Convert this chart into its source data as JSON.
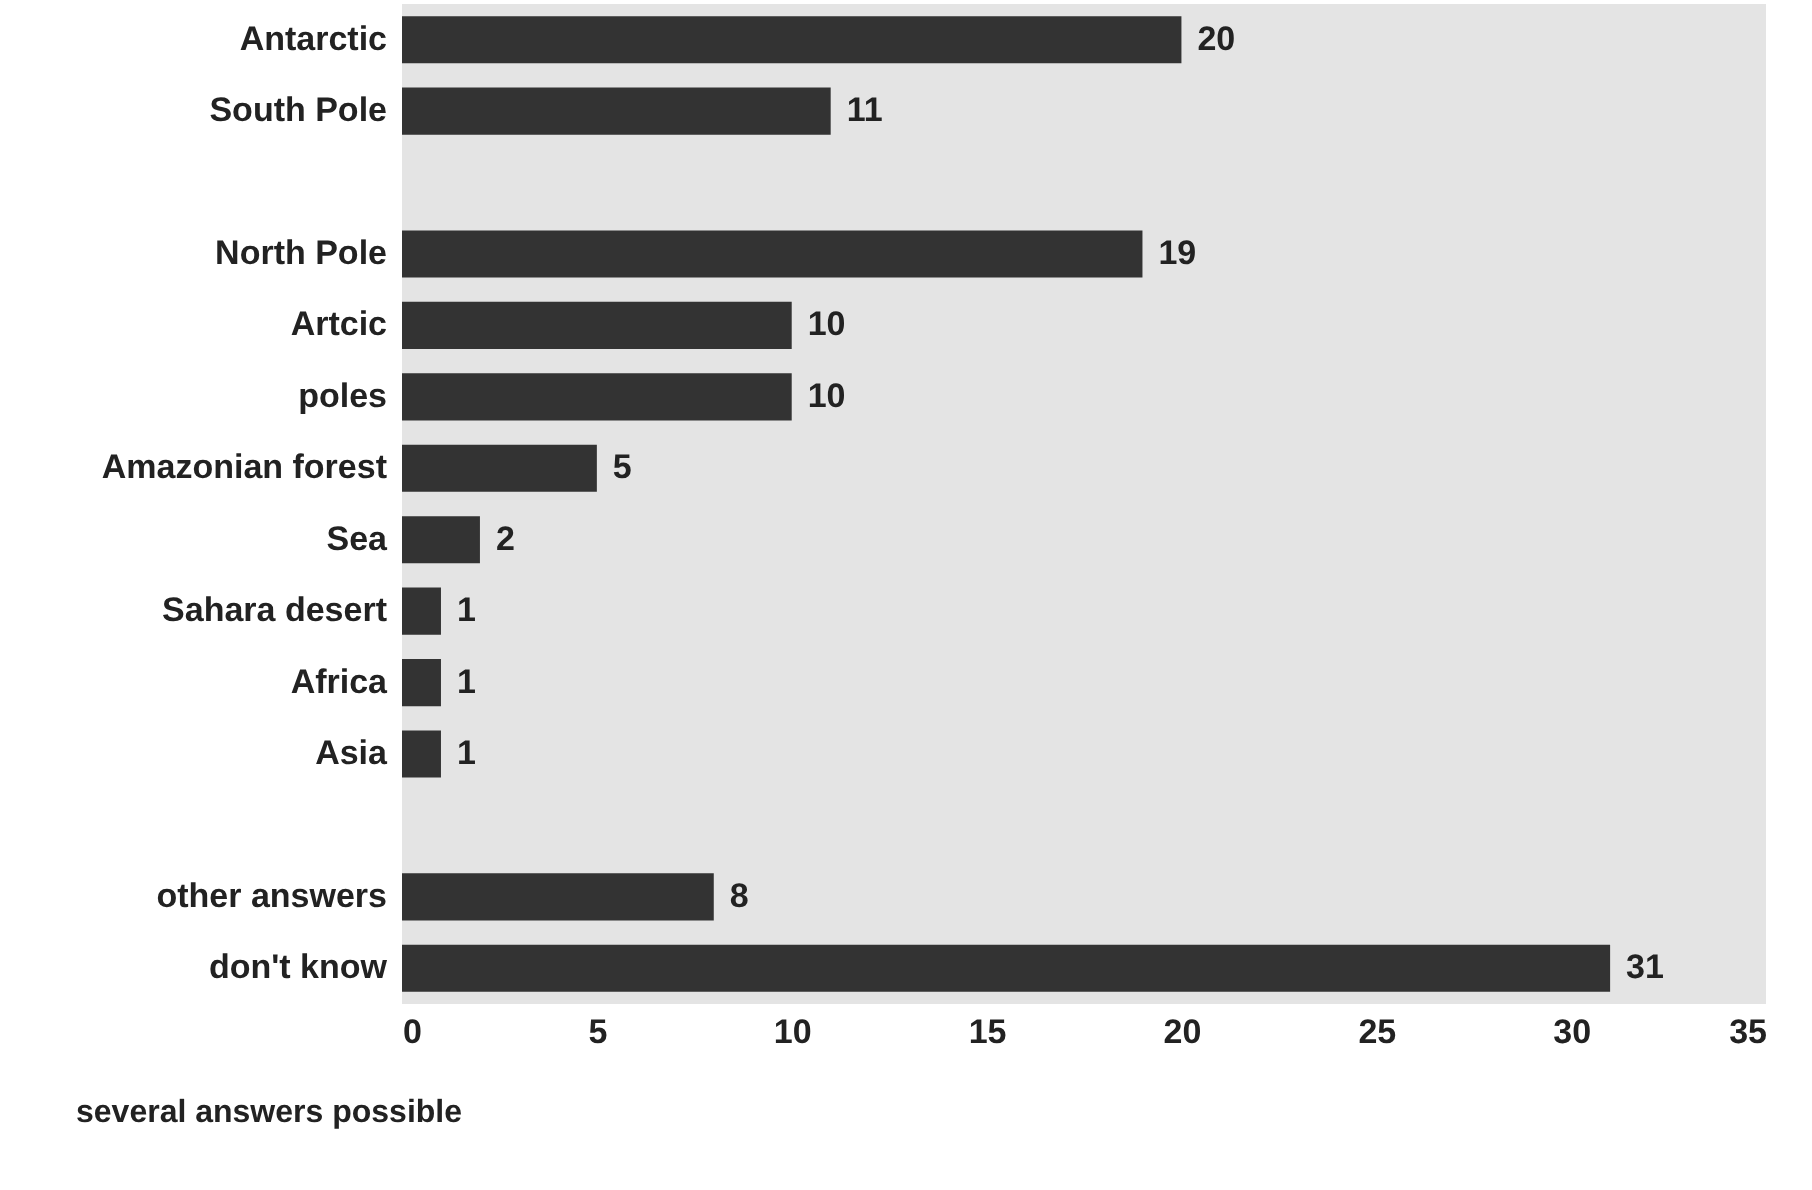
{
  "chart_data": {
    "type": "bar",
    "orientation": "horizontal",
    "categories": [
      "Antarctic",
      "South Pole",
      null,
      "North Pole",
      "Artcic",
      "poles",
      "Amazonian forest",
      "Sea",
      "Sahara desert",
      "Africa",
      "Asia",
      null,
      "other answers",
      "don't know"
    ],
    "values": [
      20,
      11,
      null,
      19,
      10,
      10,
      5,
      2,
      1,
      1,
      1,
      null,
      8,
      31
    ],
    "color": "#333333",
    "xlim": [
      0,
      35
    ],
    "xticks": [
      0,
      5,
      10,
      15,
      20,
      25,
      30,
      35
    ],
    "data_labels": true,
    "grid": false,
    "annotations": [
      "several answers possible"
    ]
  }
}
